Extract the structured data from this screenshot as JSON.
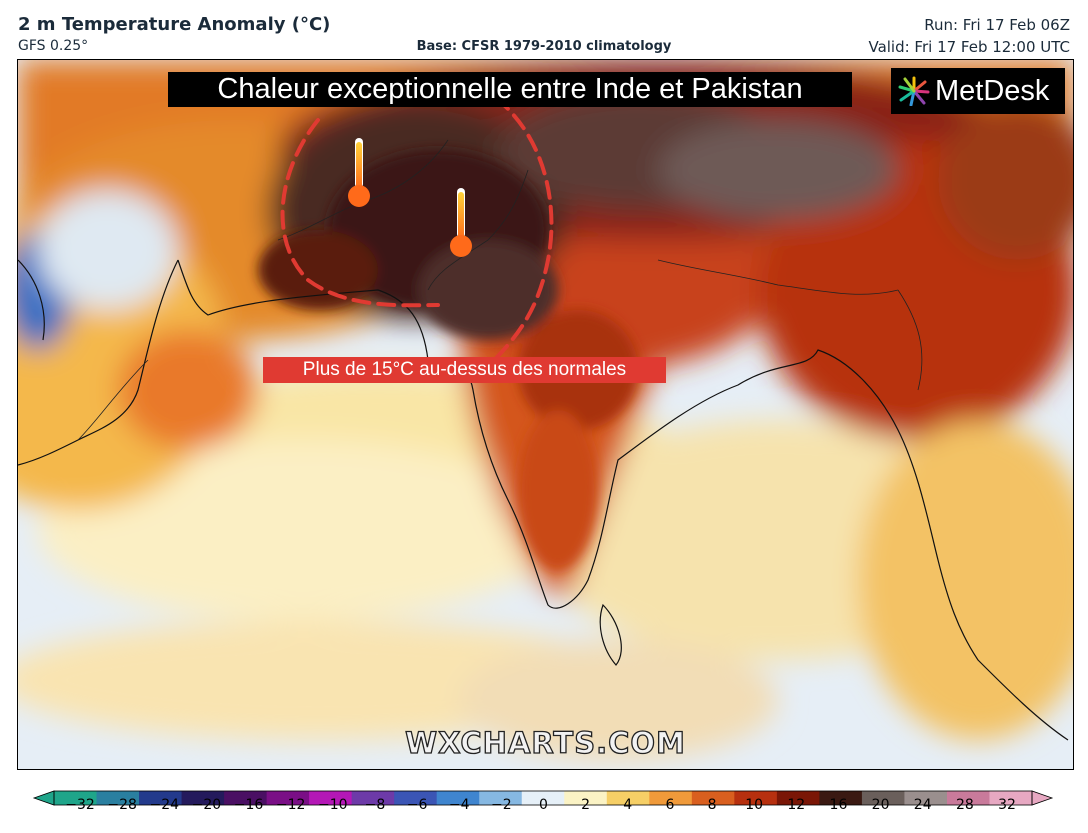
{
  "header": {
    "title": "2 m Temperature Anomaly (°C)",
    "model": "GFS 0.25°",
    "base": "Base: CFSR 1979-2010 climatology",
    "run": "Run: Fri 17 Feb 06Z",
    "valid": "Valid: Fri 17 Feb 12:00 UTC"
  },
  "map": {
    "headline": "Chaleur exceptionnelle entre Inde et Pakistan",
    "sublabel": "Plus de 15°C au-dessus des normales",
    "logo_text": "MetDesk",
    "watermark": "WXCHARTS.COM",
    "icons": [
      "thermometer-icon",
      "thermometer-icon",
      "metdesk-logo-icon"
    ]
  },
  "colorbar": {
    "ticks": [
      "−32",
      "−28",
      "−24",
      "−20",
      "−16",
      "−12",
      "−10",
      "−8",
      "−6",
      "−4",
      "−2",
      "0",
      "2",
      "4",
      "6",
      "8",
      "10",
      "12",
      "16",
      "20",
      "24",
      "28",
      "32"
    ],
    "colors": [
      "#1fa58a",
      "#2a7fa0",
      "#233a8c",
      "#241a5c",
      "#4a0f63",
      "#7a0f86",
      "#b417b6",
      "#6d3aa8",
      "#3b55b5",
      "#3f85cf",
      "#86b8e2",
      "#e6f0f8",
      "#fbf3c5",
      "#f6cf66",
      "#f09a3a",
      "#d95f1f",
      "#b7300f",
      "#7a1606",
      "#3a1912",
      "#6a5f5b",
      "#9a8f8e",
      "#c97a9b",
      "#e7a8c2"
    ]
  },
  "colors": {
    "heat_outline": "#e03a32"
  }
}
